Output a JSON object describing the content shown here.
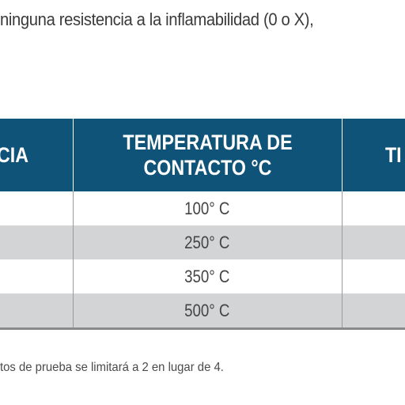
{
  "intro_text": "ninguna resistencia a la inflamabilidad (0 o X),",
  "table": {
    "headers": {
      "col1": "CIA",
      "col2_line1": "TEMPERATURA DE",
      "col2_line2": "CONTACTO °C",
      "col3": "TI"
    },
    "rows": [
      {
        "temperature": "100° C"
      },
      {
        "temperature": "250° C"
      },
      {
        "temperature": "350° C"
      },
      {
        "temperature": "500° C"
      }
    ]
  },
  "footnote": "tos de prueba se limitará a 2 en lugar de 4.",
  "colors": {
    "header_bg": "#0f5478",
    "stripe_bg": "#d2d4d6",
    "text": "#333333"
  }
}
